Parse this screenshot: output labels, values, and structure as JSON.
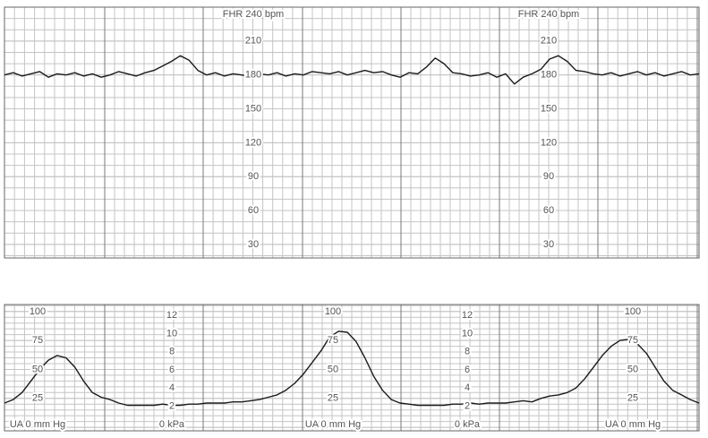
{
  "chart_data": [
    {
      "type": "line",
      "color": "#1a1a1a",
      "grid": true,
      "ylim": [
        18,
        240
      ],
      "yticks": [
        {
          "value": 240,
          "label": "FHR 240 bpm"
        },
        210,
        180,
        150,
        120,
        90,
        60,
        30
      ],
      "values": [
        180,
        182,
        179,
        181,
        183,
        178,
        181,
        180,
        182,
        179,
        181,
        178,
        180,
        183,
        181,
        179,
        182,
        184,
        188,
        192,
        197,
        193,
        184,
        180,
        182,
        179,
        181,
        180,
        178,
        181,
        180,
        182,
        179,
        181,
        180,
        183,
        182,
        181,
        183,
        180,
        182,
        184,
        182,
        183,
        180,
        178,
        182,
        181,
        187,
        195,
        190,
        182,
        181,
        179,
        180,
        182,
        178,
        181,
        172,
        178,
        181,
        185,
        194,
        197,
        192,
        184,
        183,
        181,
        180,
        182,
        179,
        181,
        183,
        180,
        182,
        179,
        181,
        183,
        180,
        181
      ]
    },
    {
      "type": "line",
      "color": "#1a1a1a",
      "grid": true,
      "ylim": [
        -3,
        106
      ],
      "yticks": [
        100,
        75,
        50,
        25,
        {
          "value": 0,
          "label": "UA  0 mm Hg"
        }
      ],
      "y2lim": [
        -0.7,
        13.2
      ],
      "y2ticks": [
        12,
        10,
        8,
        6,
        4,
        2,
        {
          "value": 0,
          "label": "0 kPa"
        }
      ],
      "values": [
        21,
        24,
        30,
        40,
        50,
        58,
        62,
        60,
        52,
        40,
        30,
        26,
        24,
        21,
        19,
        19,
        19,
        19,
        20,
        19,
        19,
        20,
        20,
        21,
        21,
        21,
        22,
        22,
        23,
        24,
        26,
        28,
        32,
        38,
        46,
        56,
        66,
        78,
        83,
        82,
        74,
        60,
        44,
        32,
        24,
        21,
        20,
        19,
        19,
        19,
        19,
        20,
        20,
        21,
        20,
        21,
        21,
        21,
        22,
        23,
        22,
        25,
        27,
        28,
        30,
        34,
        42,
        52,
        62,
        70,
        75,
        76,
        72,
        64,
        52,
        40,
        32,
        28,
        24,
        21
      ]
    }
  ]
}
